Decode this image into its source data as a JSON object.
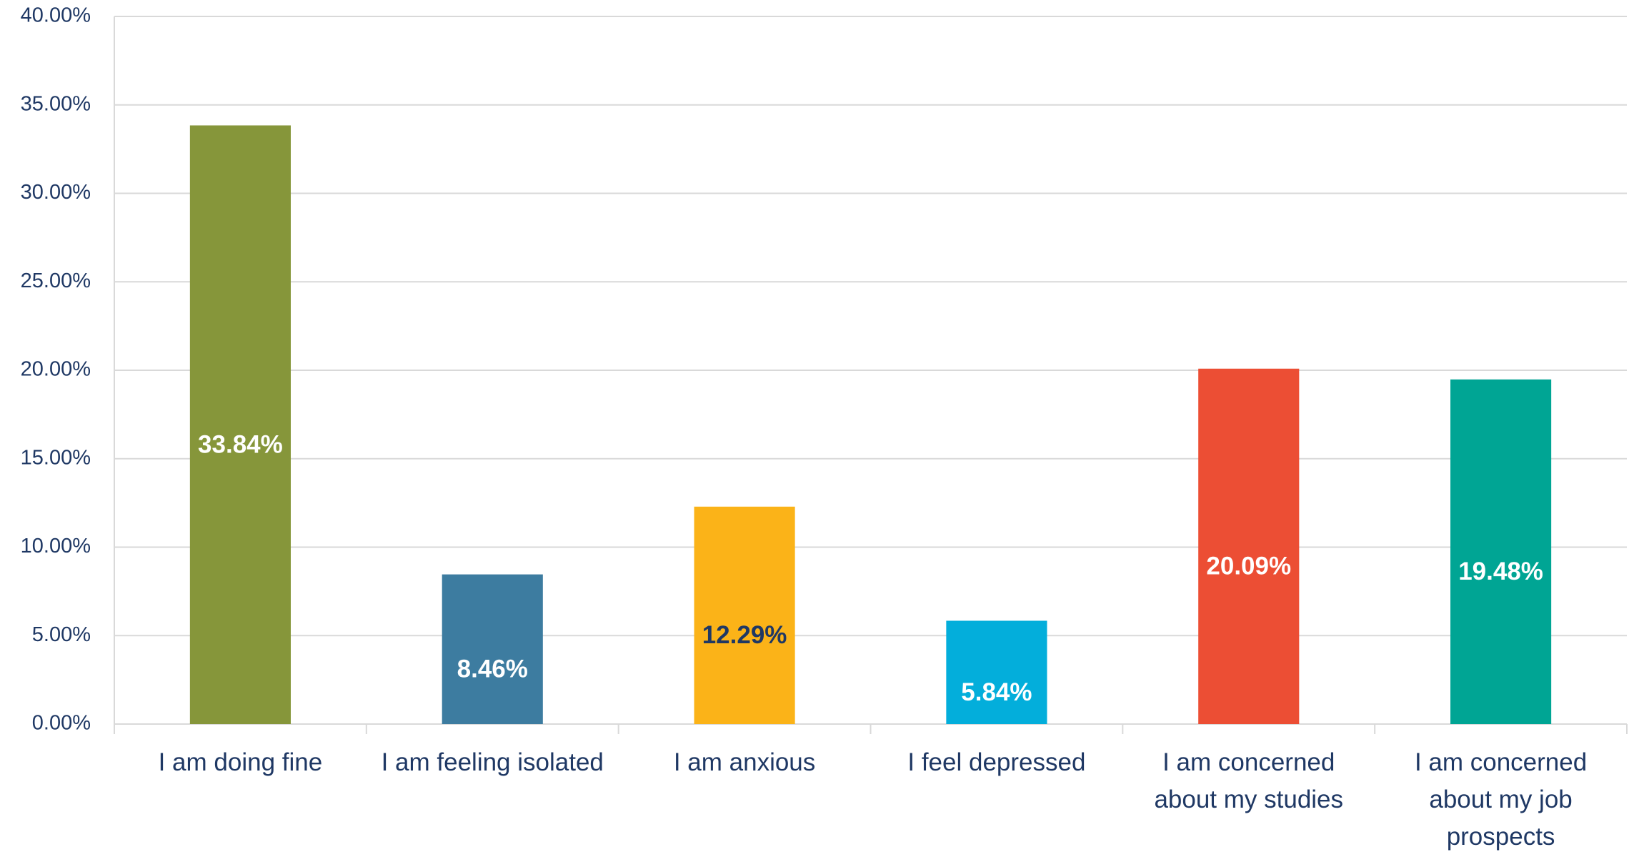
{
  "chart_data": {
    "type": "bar",
    "categories": [
      "I am doing fine",
      "I am feeling isolated",
      "I am anxious",
      "I feel depressed",
      "I am concerned about my studies",
      "I am concerned about my job prospects"
    ],
    "values": [
      33.84,
      8.46,
      12.29,
      5.84,
      20.09,
      19.48
    ],
    "value_labels": [
      "33.84%",
      "8.46%",
      "12.29%",
      "5.84%",
      "20.09%",
      "19.48%"
    ],
    "colors": [
      "#86963a",
      "#3d7ca0",
      "#fbb318",
      "#03aedb",
      "#ec4e34",
      "#00a594"
    ],
    "value_label_colors": [
      "#ffffff",
      "#ffffff",
      "#1f3864",
      "#ffffff",
      "#ffffff",
      "#ffffff"
    ],
    "ylim": [
      0,
      40
    ],
    "yticks": [
      {
        "value": 0,
        "label": "0.00%"
      },
      {
        "value": 5,
        "label": "5.00%"
      },
      {
        "value": 10,
        "label": "10.00%"
      },
      {
        "value": 15,
        "label": "15.00%"
      },
      {
        "value": 20,
        "label": "20.00%"
      },
      {
        "value": 25,
        "label": "25.00%"
      },
      {
        "value": 30,
        "label": "30.00%"
      },
      {
        "value": 35,
        "label": "35.00%"
      },
      {
        "value": 40,
        "label": "40.00%"
      }
    ],
    "grid": true
  }
}
